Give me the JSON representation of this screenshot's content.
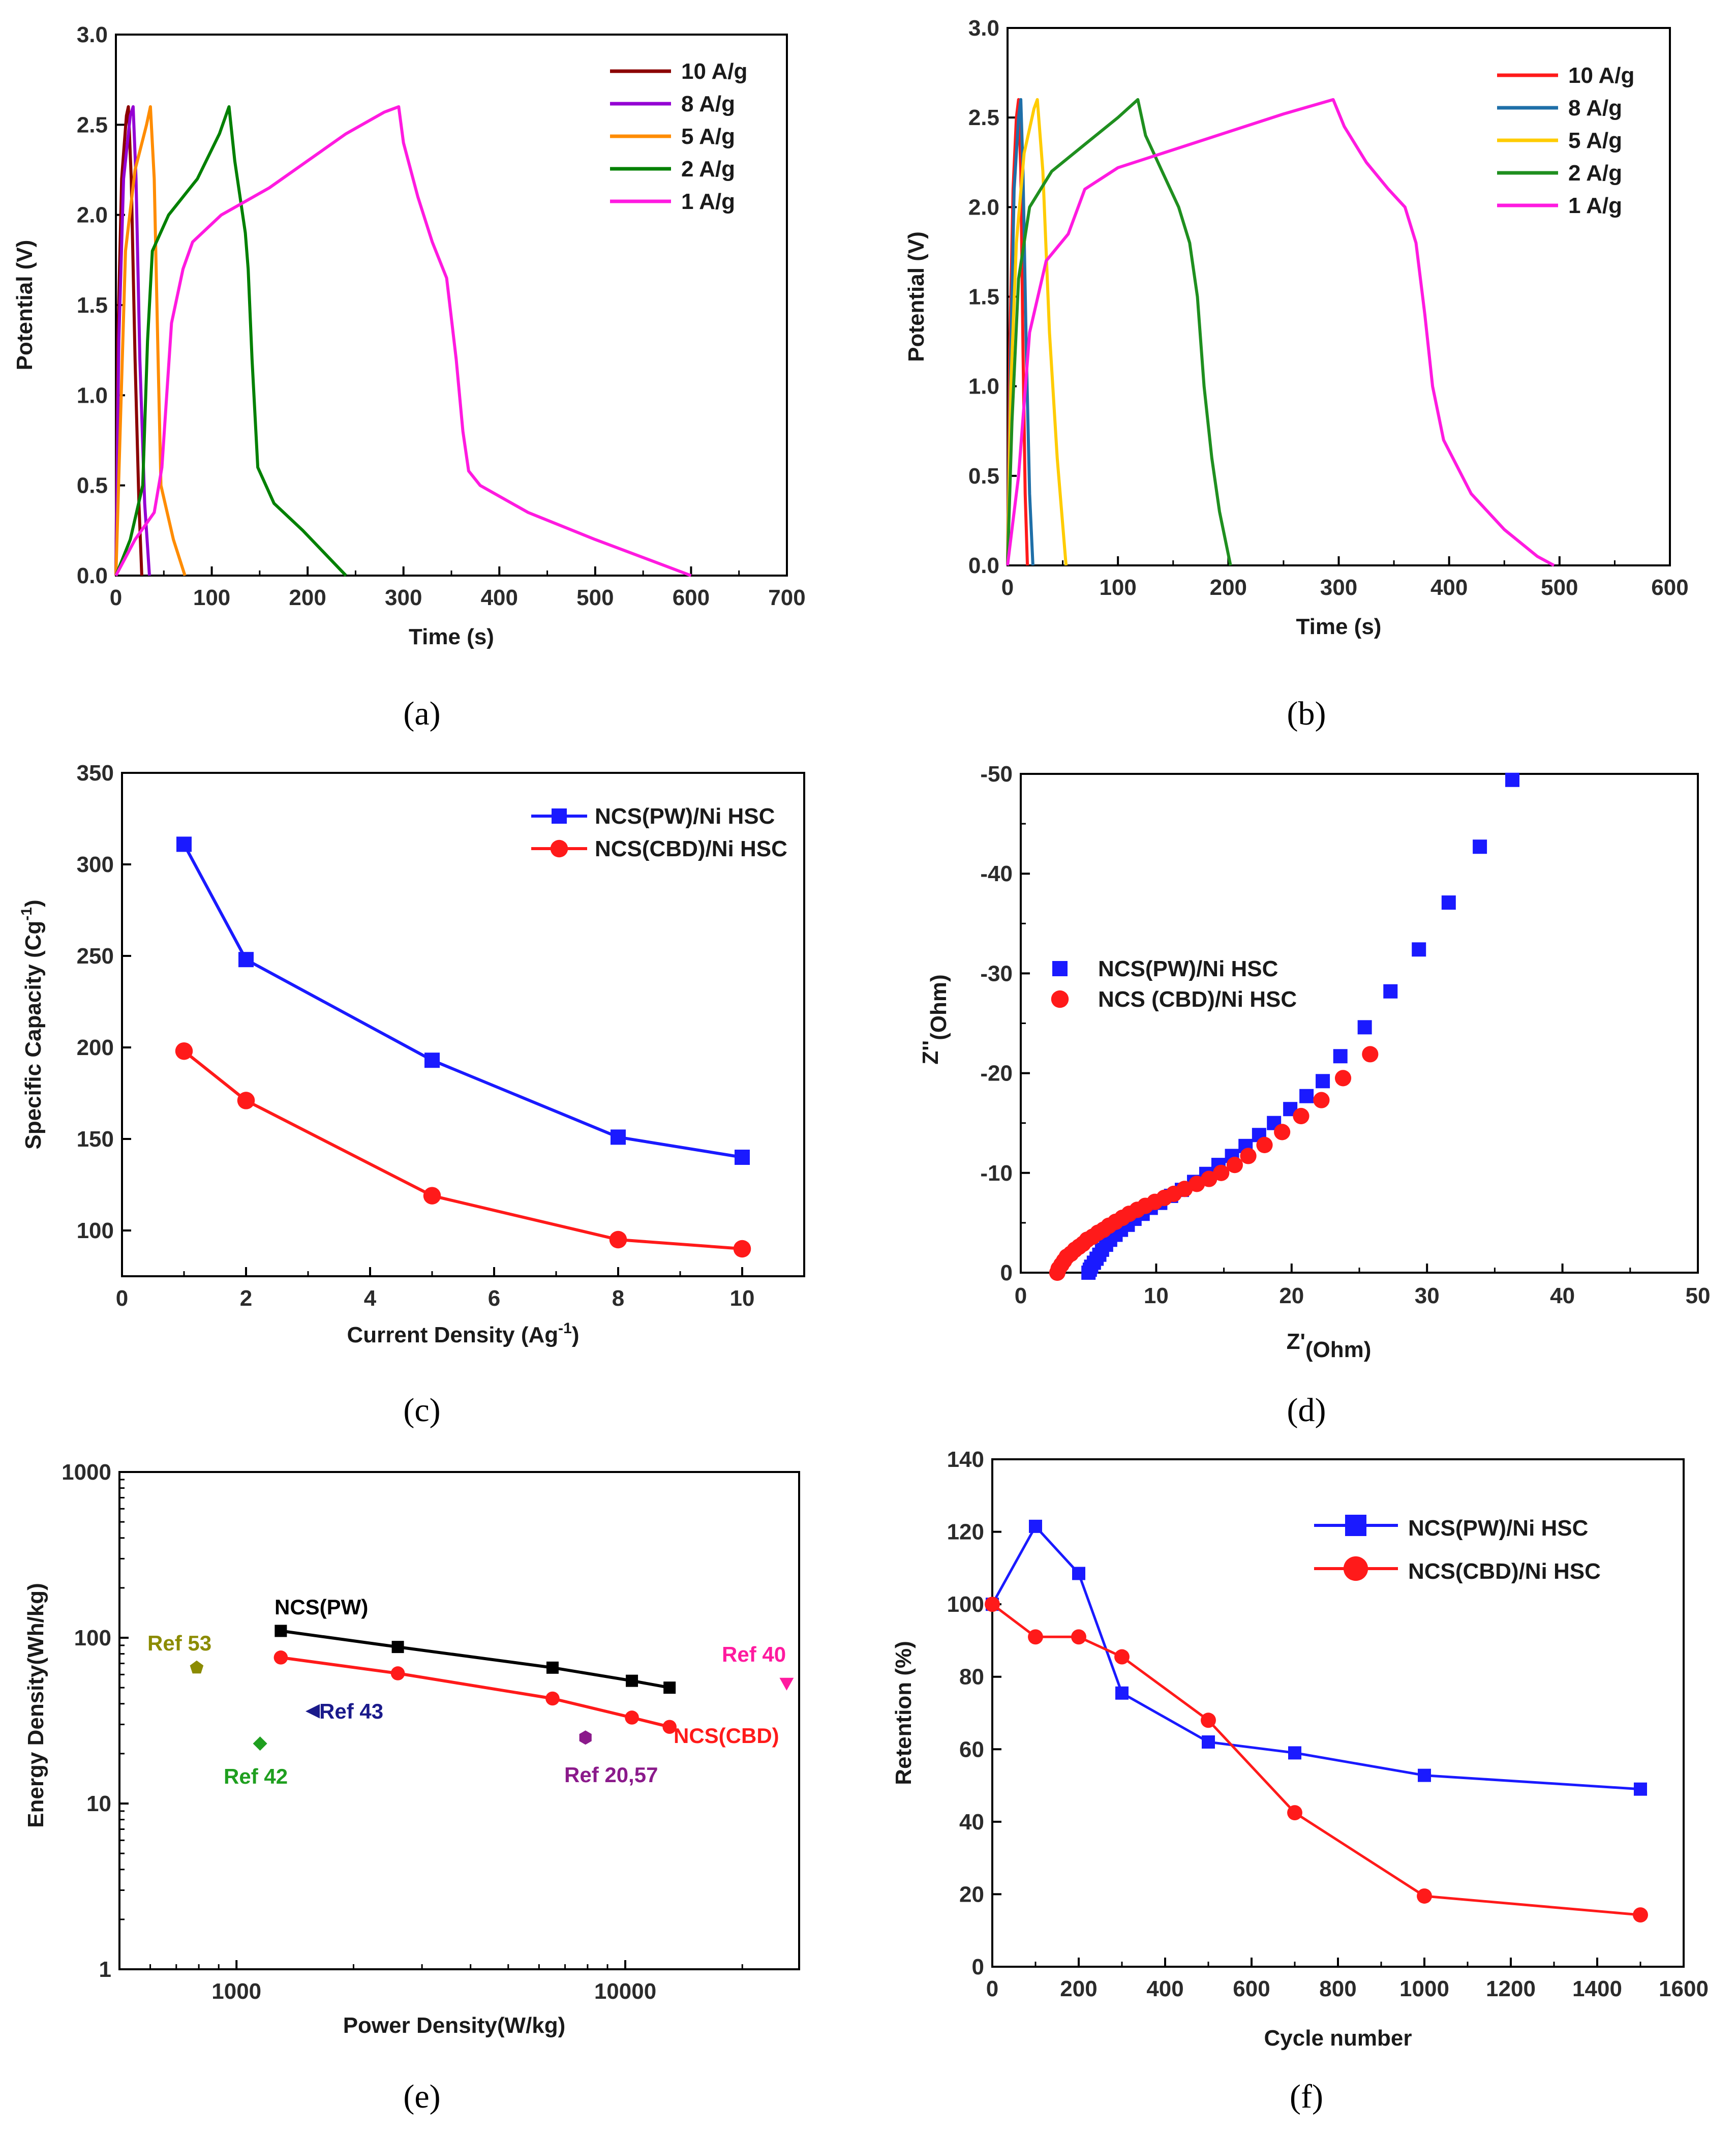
{
  "panel_labels": [
    "(a)",
    "(b)",
    "(c)",
    "(d)",
    "(e)",
    "(f)"
  ],
  "chart_data": [
    {
      "id": "a",
      "type": "line",
      "xlabel": "Time (s)",
      "ylabel": "Potential (V)",
      "xlim": [
        0,
        700
      ],
      "ylim": [
        0,
        3.0
      ],
      "xticks": [
        "0",
        "100",
        "200",
        "300",
        "400",
        "500",
        "600",
        "700"
      ],
      "yticks": [
        "0.0",
        "0.5",
        "1.0",
        "1.5",
        "2.0",
        "2.5",
        "3.0"
      ],
      "legend_position": "top-right",
      "series": [
        {
          "name": "10 A/g",
          "color": "#8b0000",
          "points": [
            [
              0,
              0
            ],
            [
              2,
              1.3
            ],
            [
              6,
              2.2
            ],
            [
              11,
              2.55
            ],
            [
              13,
              2.6
            ],
            [
              16,
              2.2
            ],
            [
              20,
              1.2
            ],
            [
              24,
              0.4
            ],
            [
              27,
              0
            ]
          ]
        },
        {
          "name": "8 A/g",
          "color": "#9400d3",
          "points": [
            [
              0,
              0
            ],
            [
              3,
              1.3
            ],
            [
              8,
              2.2
            ],
            [
              15,
              2.55
            ],
            [
              18,
              2.6
            ],
            [
              21,
              2.2
            ],
            [
              25,
              1.2
            ],
            [
              30,
              0.4
            ],
            [
              35,
              0
            ]
          ]
        },
        {
          "name": "5 A/g",
          "color": "#ff8c00",
          "points": [
            [
              0,
              0
            ],
            [
              5,
              0.9
            ],
            [
              10,
              1.8
            ],
            [
              20,
              2.25
            ],
            [
              32,
              2.5
            ],
            [
              36,
              2.6
            ],
            [
              40,
              2.2
            ],
            [
              44,
              1.2
            ],
            [
              47,
              0.5
            ],
            [
              60,
              0.2
            ],
            [
              72,
              0
            ]
          ]
        },
        {
          "name": "2 A/g",
          "color": "#008000",
          "points": [
            [
              0,
              0
            ],
            [
              15,
              0.2
            ],
            [
              28,
              0.5
            ],
            [
              33,
              1.3
            ],
            [
              38,
              1.8
            ],
            [
              55,
              2.0
            ],
            [
              85,
              2.2
            ],
            [
              108,
              2.45
            ],
            [
              118,
              2.6
            ],
            [
              124,
              2.3
            ],
            [
              135,
              1.9
            ],
            [
              138,
              1.7
            ],
            [
              142,
              1.2
            ],
            [
              148,
              0.6
            ],
            [
              165,
              0.4
            ],
            [
              195,
              0.25
            ],
            [
              240,
              0
            ]
          ]
        },
        {
          "name": "1 A/g",
          "color": "#ff1ae0",
          "points": [
            [
              0,
              0
            ],
            [
              20,
              0.2
            ],
            [
              40,
              0.35
            ],
            [
              48,
              0.6
            ],
            [
              58,
              1.4
            ],
            [
              70,
              1.7
            ],
            [
              80,
              1.85
            ],
            [
              110,
              2.0
            ],
            [
              160,
              2.15
            ],
            [
              200,
              2.3
            ],
            [
              240,
              2.45
            ],
            [
              280,
              2.57
            ],
            [
              295,
              2.6
            ],
            [
              300,
              2.4
            ],
            [
              315,
              2.1
            ],
            [
              330,
              1.85
            ],
            [
              345,
              1.65
            ],
            [
              355,
              1.2
            ],
            [
              362,
              0.8
            ],
            [
              368,
              0.58
            ],
            [
              380,
              0.5
            ],
            [
              430,
              0.35
            ],
            [
              500,
              0.2
            ],
            [
              560,
              0.08
            ],
            [
              600,
              0
            ]
          ]
        }
      ]
    },
    {
      "id": "b",
      "type": "line",
      "xlabel": "Time (s)",
      "ylabel": "Potential (V)",
      "xlim": [
        0,
        600
      ],
      "ylim": [
        0,
        3.0
      ],
      "xticks": [
        "0",
        "100",
        "200",
        "300",
        "400",
        "500",
        "600"
      ],
      "yticks": [
        "0.0",
        "0.5",
        "1.0",
        "1.5",
        "2.0",
        "2.5",
        "3.0"
      ],
      "legend_position": "top-right",
      "series": [
        {
          "name": "10 A/g",
          "color": "#ff1a1a",
          "points": [
            [
              0,
              0
            ],
            [
              2,
              1.2
            ],
            [
              5,
              2.1
            ],
            [
              8,
              2.5
            ],
            [
              10,
              2.6
            ],
            [
              12,
              2.2
            ],
            [
              14,
              1.2
            ],
            [
              16,
              0.4
            ],
            [
              18,
              0
            ]
          ]
        },
        {
          "name": "8 A/g",
          "color": "#1f6fa8",
          "points": [
            [
              0,
              0
            ],
            [
              3,
              1.2
            ],
            [
              6,
              2.1
            ],
            [
              10,
              2.5
            ],
            [
              12,
              2.6
            ],
            [
              14,
              2.2
            ],
            [
              17,
              1.2
            ],
            [
              20,
              0.4
            ],
            [
              23,
              0
            ]
          ]
        },
        {
          "name": "5 A/g",
          "color": "#ffcc00",
          "points": [
            [
              0,
              0
            ],
            [
              3,
              1.0
            ],
            [
              8,
              1.8
            ],
            [
              15,
              2.3
            ],
            [
              24,
              2.55
            ],
            [
              27,
              2.6
            ],
            [
              32,
              2.2
            ],
            [
              38,
              1.3
            ],
            [
              45,
              0.6
            ],
            [
              53,
              0
            ]
          ]
        },
        {
          "name": "2 A/g",
          "color": "#1f8f1f",
          "points": [
            [
              0,
              0
            ],
            [
              4,
              0.8
            ],
            [
              10,
              1.6
            ],
            [
              20,
              2.0
            ],
            [
              40,
              2.2
            ],
            [
              70,
              2.35
            ],
            [
              100,
              2.5
            ],
            [
              118,
              2.6
            ],
            [
              125,
              2.4
            ],
            [
              140,
              2.2
            ],
            [
              155,
              2.0
            ],
            [
              165,
              1.8
            ],
            [
              172,
              1.5
            ],
            [
              178,
              1.0
            ],
            [
              185,
              0.6
            ],
            [
              192,
              0.3
            ],
            [
              202,
              0
            ]
          ]
        },
        {
          "name": "1 A/g",
          "color": "#ff1ae0",
          "points": [
            [
              0,
              0
            ],
            [
              10,
              0.5
            ],
            [
              20,
              1.3
            ],
            [
              35,
              1.7
            ],
            [
              55,
              1.85
            ],
            [
              70,
              2.1
            ],
            [
              100,
              2.22
            ],
            [
              150,
              2.32
            ],
            [
              200,
              2.42
            ],
            [
              250,
              2.52
            ],
            [
              295,
              2.6
            ],
            [
              305,
              2.45
            ],
            [
              325,
              2.25
            ],
            [
              345,
              2.1
            ],
            [
              360,
              2.0
            ],
            [
              370,
              1.8
            ],
            [
              378,
              1.4
            ],
            [
              385,
              1.0
            ],
            [
              395,
              0.7
            ],
            [
              420,
              0.4
            ],
            [
              450,
              0.2
            ],
            [
              480,
              0.05
            ],
            [
              495,
              0
            ]
          ]
        }
      ]
    },
    {
      "id": "c",
      "type": "line",
      "xlabel": "Current Density (Ag",
      "xlabel_sup": "-1",
      "xlabel_end": ")",
      "ylabel": "Specific Capacity (Cg",
      "ylabel_sup": "-1",
      "ylabel_end": ")",
      "xlim": [
        0,
        11
      ],
      "ylim": [
        75,
        350
      ],
      "xticks": [
        "0",
        "2",
        "4",
        "6",
        "8",
        "10"
      ],
      "yticks": [
        "100",
        "150",
        "200",
        "250",
        "300",
        "350"
      ],
      "legend_position": "top-right",
      "series": [
        {
          "name": "NCS(PW)/Ni HSC",
          "color": "#1a1aff",
          "marker": "square",
          "x": [
            1,
            2,
            5,
            8,
            10
          ],
          "values": [
            311,
            248,
            193,
            151,
            140
          ]
        },
        {
          "name": "NCS(CBD)/Ni HSC",
          "color": "#ff1a1a",
          "marker": "circle",
          "x": [
            1,
            2,
            5,
            8,
            10
          ],
          "values": [
            198,
            171,
            119,
            95,
            90
          ]
        }
      ]
    },
    {
      "id": "d",
      "type": "scatter",
      "xlabel": "Z'",
      "xlabel_sub": "(Ohm)",
      "ylabel": "Z''",
      "ylabel_sub": "(Ohm)",
      "xlim": [
        0,
        50
      ],
      "ylim": [
        0,
        -50
      ],
      "xticks": [
        "0",
        "10",
        "20",
        "30",
        "40",
        "50"
      ],
      "yticks": [
        "0",
        "-10",
        "-20",
        "-30",
        "-40",
        "-50"
      ],
      "legend_position": "middle-left",
      "series": [
        {
          "name": "NCS(PW)/Ni HSC",
          "color": "#1a1aff",
          "marker": "square",
          "x": [
            5.0,
            5.1,
            5.2,
            5.4,
            5.6,
            5.8,
            6.0,
            6.3,
            6.6,
            7.0,
            7.4,
            7.9,
            8.4,
            9.0,
            9.6,
            10.3,
            11.1,
            11.9,
            12.8,
            13.7,
            14.6,
            15.6,
            16.6,
            17.6,
            18.7,
            19.9,
            21.1,
            22.3,
            23.6,
            25.4,
            27.3,
            29.4,
            31.6,
            33.9,
            36.3
          ],
          "values": [
            0,
            -0.3,
            -0.6,
            -1.0,
            -1.4,
            -1.8,
            -2.3,
            -2.8,
            -3.3,
            -3.8,
            -4.3,
            -4.8,
            -5.4,
            -5.9,
            -6.5,
            -7.0,
            -7.7,
            -8.3,
            -9.1,
            -9.9,
            -10.8,
            -11.7,
            -12.7,
            -13.8,
            -15.0,
            -16.4,
            -17.7,
            -19.2,
            -21.7,
            -24.6,
            -28.2,
            -32.4,
            -37.1,
            -42.7,
            -49.4
          ]
        },
        {
          "name": "NCS (CBD)/Ni HSC",
          "color": "#ff1a1a",
          "marker": "circle",
          "x": [
            2.7,
            2.8,
            3.0,
            3.2,
            3.4,
            3.7,
            4.0,
            4.3,
            4.6,
            4.9,
            5.3,
            5.7,
            6.1,
            6.5,
            7.0,
            7.5,
            8.0,
            8.6,
            9.2,
            9.9,
            10.6,
            11.3,
            12.1,
            13.0,
            13.9,
            14.8,
            15.8,
            16.8,
            18.0,
            19.3,
            20.7,
            22.2,
            23.8,
            25.8
          ],
          "values": [
            0,
            -0.4,
            -0.8,
            -1.2,
            -1.6,
            -1.9,
            -2.3,
            -2.6,
            -2.9,
            -3.3,
            -3.6,
            -4.0,
            -4.3,
            -4.7,
            -5.1,
            -5.5,
            -5.9,
            -6.3,
            -6.7,
            -7.1,
            -7.5,
            -7.9,
            -8.4,
            -8.9,
            -9.4,
            -10.0,
            -10.8,
            -11.7,
            -12.8,
            -14.1,
            -15.7,
            -17.3,
            -19.5,
            -21.9
          ]
        }
      ]
    },
    {
      "id": "e",
      "type": "line",
      "scale": "log-log",
      "xlabel": "Power Density(W/kg)",
      "ylabel": "Energy Density(Wh/kg)",
      "xlim": [
        500,
        28000
      ],
      "ylim": [
        1,
        1000
      ],
      "xticks": [
        {
          "v": 1000,
          "label": "1000"
        },
        {
          "v": 10000,
          "label": "10000"
        }
      ],
      "yticks": [
        {
          "v": 1,
          "label": "1"
        },
        {
          "v": 10,
          "label": "10"
        },
        {
          "v": 100,
          "label": "100"
        },
        {
          "v": 1000,
          "label": "1000"
        }
      ],
      "series": [
        {
          "name": "NCS(PW)",
          "color": "#000000",
          "marker": "square",
          "x": [
            1300,
            2600,
            6500,
            10400,
            13000
          ],
          "values": [
            110,
            88,
            66,
            55,
            50
          ]
        },
        {
          "name": "NCS(CBD)",
          "color": "#ff1a1a",
          "marker": "circle",
          "x": [
            1300,
            2600,
            6500,
            10400,
            13000
          ],
          "values": [
            76,
            61,
            43,
            33,
            29
          ]
        }
      ],
      "refs": [
        {
          "name": "Ref 53",
          "color": "#8b8b00",
          "marker": "pentagon",
          "x": 790,
          "y": 66
        },
        {
          "name": "Ref 42",
          "color": "#1f9f1f",
          "marker": "diamond",
          "x": 1150,
          "y": 23
        },
        {
          "name": "Ref 43",
          "color": "#1a1a8b",
          "marker": "triangle-left",
          "x": 1570,
          "y": 36
        },
        {
          "name": "Ref 20,57",
          "color": "#8b1a8b",
          "marker": "hexagon",
          "x": 7900,
          "y": 25
        },
        {
          "name": "Ref 40",
          "color": "#ff1a9f",
          "marker": "triangle-down",
          "x": 26000,
          "y": 53
        }
      ]
    },
    {
      "id": "f",
      "type": "line",
      "xlabel": "Cycle number",
      "ylabel": "Retention (%)",
      "xlim": [
        0,
        1600
      ],
      "ylim": [
        0,
        140
      ],
      "xticks": [
        "0",
        "200",
        "400",
        "600",
        "800",
        "1000",
        "1200",
        "1400",
        "1600"
      ],
      "yticks": [
        "0",
        "20",
        "40",
        "60",
        "80",
        "100",
        "120",
        "140"
      ],
      "legend_position": "top-right",
      "series": [
        {
          "name": "NCS(PW)/Ni HSC",
          "color": "#1a1aff",
          "marker": "square",
          "x": [
            0,
            100,
            200,
            300,
            500,
            700,
            1000,
            1500
          ],
          "values": [
            100,
            121.5,
            108.5,
            75.5,
            62,
            59,
            52.8,
            49
          ]
        },
        {
          "name": "NCS(CBD)/Ni HSC",
          "color": "#ff1a1a",
          "marker": "circle",
          "x": [
            0,
            100,
            200,
            300,
            500,
            700,
            1000,
            1500
          ],
          "values": [
            100,
            91,
            91,
            85.5,
            68,
            42.5,
            19.5,
            14.3
          ]
        }
      ]
    }
  ]
}
